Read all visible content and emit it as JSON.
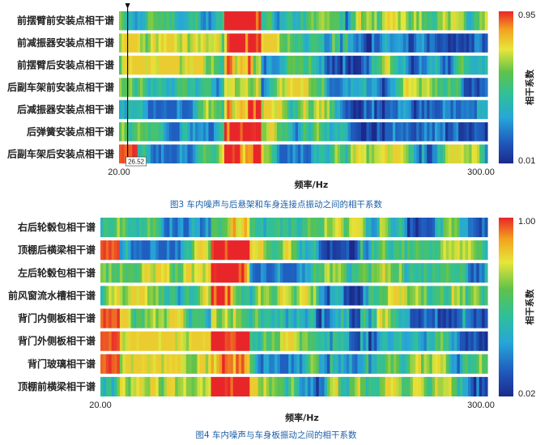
{
  "chart_data": [
    {
      "type": "heatmap",
      "caption": "图3  车内噪声与后悬架和车身连接点振动之间的相干系数",
      "xlabel": "频率/Hz",
      "x_tick_labels": [
        "20.00",
        "300.00"
      ],
      "xlim": [
        20,
        300
      ],
      "colorbar": {
        "label": "相干系数",
        "min_label": "0.01",
        "max_label": "0.95",
        "range": [
          0.01,
          0.95
        ]
      },
      "cursor": {
        "label": "26.52",
        "frequency": 26.52
      },
      "rows": [
        {
          "label": "前摆臂前安装点相干谱",
          "seed": 11
        },
        {
          "label": "前减振器安装点相干谱",
          "seed": 23
        },
        {
          "label": "前摆臂后安装点相干谱",
          "seed": 37
        },
        {
          "label": "后副车架前安装点相干谱",
          "seed": 41
        },
        {
          "label": "后减振器安装点相干谱",
          "seed": 53
        },
        {
          "label": "后弹簧安装点相干谱",
          "seed": 67
        },
        {
          "label": "后副车架后安装点相干谱",
          "seed": 79
        }
      ]
    },
    {
      "type": "heatmap",
      "caption": "图4  车内噪声与车身板振动之间的相干系数",
      "xlabel": "频率/Hz",
      "x_tick_labels": [
        "20.00",
        "300.00"
      ],
      "xlim": [
        20,
        300
      ],
      "colorbar": {
        "label": "相干系数",
        "min_label": "0.02",
        "max_label": "1.00",
        "range": [
          0.02,
          1.0
        ]
      },
      "rows": [
        {
          "label": "右后轮毂包相干谱",
          "seed": 101
        },
        {
          "label": "顶棚后横梁相干谱",
          "seed": 113
        },
        {
          "label": "左后轮毂包相干谱",
          "seed": 127
        },
        {
          "label": "前风窗流水槽相干谱",
          "seed": 131
        },
        {
          "label": "背门内侧板相干谱",
          "seed": 149
        },
        {
          "label": "背门外侧板相干谱",
          "seed": 157
        },
        {
          "label": "背门玻璃相干谱",
          "seed": 163
        },
        {
          "label": "顶棚前横梁相干谱",
          "seed": 173
        }
      ]
    }
  ]
}
